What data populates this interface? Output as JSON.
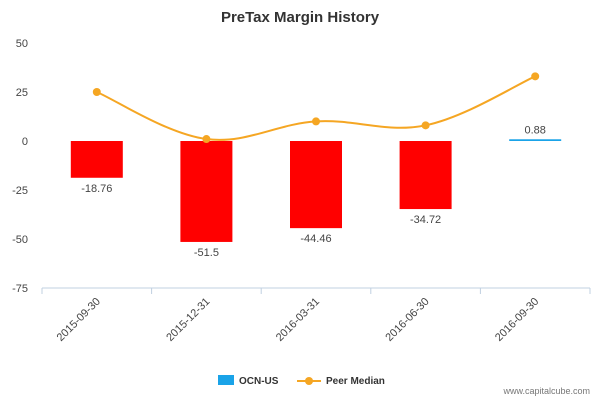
{
  "chart_data": {
    "type": "bar",
    "title": "PreTax Margin History",
    "categories": [
      "2015-09-30",
      "2015-12-31",
      "2016-03-31",
      "2016-06-30",
      "2016-09-30"
    ],
    "series": [
      {
        "name": "OCN-US",
        "kind": "bar",
        "values": [
          -18.76,
          -51.5,
          -44.46,
          -34.72,
          0.88
        ],
        "data_labels": [
          "-18.76",
          "-51.5",
          "-44.46",
          "-34.72",
          "0.88"
        ],
        "legend_color": "#1AA3E8",
        "negative_color": "#FF0000",
        "positive_color": "#1AA3E8"
      },
      {
        "name": "Peer Median",
        "kind": "line",
        "values": [
          25,
          1,
          10,
          8,
          33
        ],
        "color": "#F5A623"
      }
    ],
    "ylim": [
      -75,
      50
    ],
    "yticks": [
      50,
      25,
      0,
      -25,
      -50,
      -75
    ],
    "ytick_labels": [
      "50",
      "25",
      "0",
      "-25",
      "-50",
      "-75"
    ],
    "xlabel": "",
    "ylabel": "",
    "grid": false,
    "legend_position": "bottom-center"
  },
  "credit": "www.capitalcube.com"
}
